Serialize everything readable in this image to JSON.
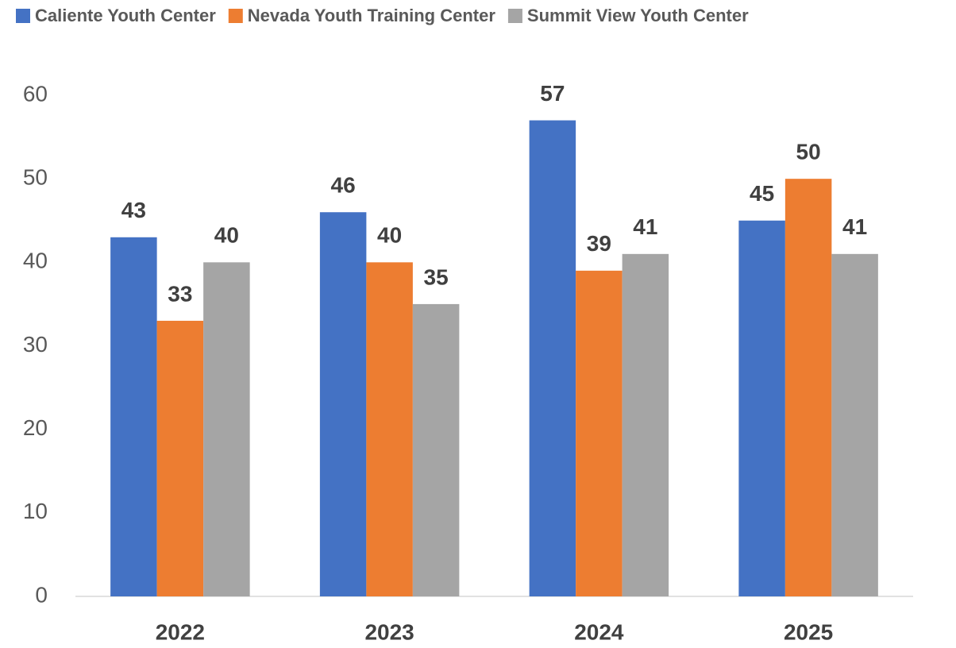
{
  "chart_data": {
    "type": "bar",
    "categories": [
      "2022",
      "2023",
      "2024",
      "2025"
    ],
    "series": [
      {
        "name": "Caliente Youth Center",
        "color": "#4472c4",
        "values": [
          43,
          46,
          57,
          45
        ]
      },
      {
        "name": "Nevada Youth Training Center",
        "color": "#ed7d31",
        "values": [
          33,
          40,
          39,
          50
        ]
      },
      {
        "name": "Summit View Youth Center",
        "color": "#a5a5a5",
        "values": [
          40,
          35,
          41,
          41
        ]
      }
    ],
    "ylim": [
      0,
      60
    ],
    "yticks": [
      0,
      10,
      20,
      30,
      40,
      50,
      60
    ],
    "grid": false,
    "legend": "top"
  }
}
